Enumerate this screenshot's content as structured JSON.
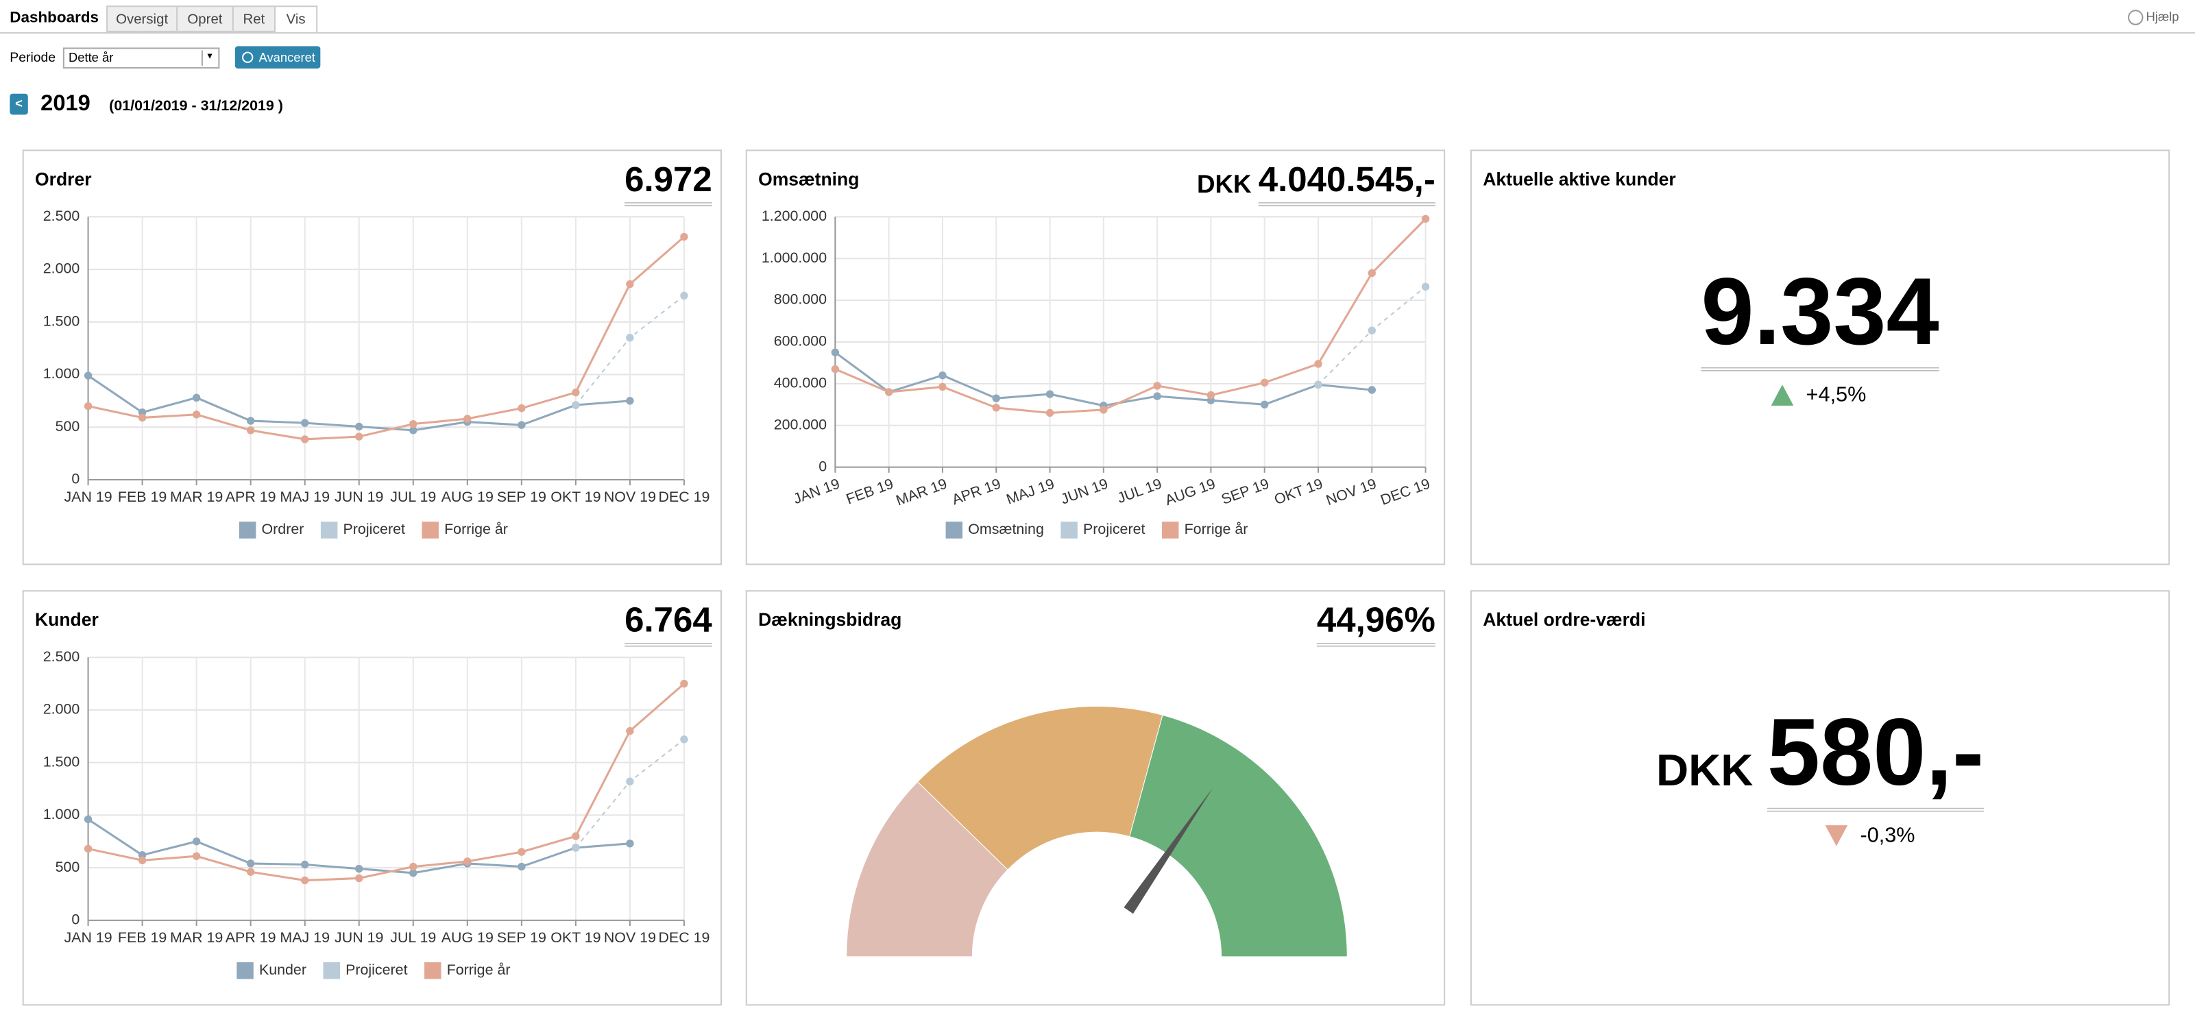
{
  "header": {
    "title": "Dashboards",
    "tabs": [
      "Oversigt",
      "Opret",
      "Ret",
      "Vis"
    ],
    "help": "Hjælp"
  },
  "filter": {
    "label": "Periode",
    "select": "Dette år",
    "button": "Avanceret"
  },
  "period": {
    "back": "<",
    "year": "2019",
    "range": "(01/01/2019 - 31/12/2019 )"
  },
  "chart_data": [
    {
      "type": "line",
      "title": "Ordrer",
      "total": "6.972",
      "categories": [
        "JAN 19",
        "FEB 19",
        "MAR 19",
        "APR 19",
        "MAJ 19",
        "JUN 19",
        "JUL 19",
        "AUG 19",
        "SEP 19",
        "OKT 19",
        "NOV 19",
        "DEC 19"
      ],
      "ylim": [
        0,
        2500
      ],
      "yticks": [
        0,
        500,
        {
          "value": 1000,
          "label": "1.000"
        },
        {
          "value": 1500,
          "label": "1.500"
        },
        {
          "value": 2000,
          "label": "2.000"
        },
        {
          "value": 2500,
          "label": "2.500"
        }
      ],
      "grid": true,
      "series": [
        {
          "name": "Ordrer",
          "color": "#8fa8bc",
          "values": [
            990,
            640,
            780,
            560,
            540,
            505,
            470,
            550,
            520,
            710,
            750,
            null
          ]
        },
        {
          "name": "Projiceret",
          "color": "#b9cbd8",
          "dashed": true,
          "values": [
            null,
            null,
            null,
            null,
            null,
            null,
            null,
            null,
            null,
            710,
            1350,
            1750
          ]
        },
        {
          "name": "Forrige år",
          "color": "#e2a793",
          "values": [
            700,
            590,
            620,
            470,
            385,
            410,
            530,
            580,
            680,
            830,
            1860,
            2310
          ]
        }
      ]
    },
    {
      "type": "line",
      "title": "Omsætning",
      "total_prefix": "DKK",
      "total": "4.040.545,-",
      "categories": [
        "JAN 19",
        "FEB 19",
        "MAR 19",
        "APR 19",
        "MAJ 19",
        "JUN 19",
        "JUL 19",
        "AUG 19",
        "SEP 19",
        "OKT 19",
        "NOV 19",
        "DEC 19"
      ],
      "ylim": [
        0,
        1200000
      ],
      "yticks": [
        0,
        {
          "value": 200000,
          "label": "200.000"
        },
        {
          "value": 400000,
          "label": "400.000"
        },
        {
          "value": 600000,
          "label": "600.000"
        },
        {
          "value": 800000,
          "label": "800.000"
        },
        {
          "value": 1000000,
          "label": "1.000.000"
        },
        {
          "value": 1200000,
          "label": "1.200.000"
        }
      ],
      "grid": true,
      "series": [
        {
          "name": "Omsætning",
          "color": "#8fa8bc",
          "values": [
            550000,
            360000,
            440000,
            330000,
            350000,
            295000,
            340000,
            320000,
            300000,
            395000,
            370000,
            null
          ]
        },
        {
          "name": "Projiceret",
          "color": "#b9cbd8",
          "dashed": true,
          "values": [
            null,
            null,
            null,
            null,
            null,
            null,
            null,
            null,
            null,
            395000,
            655000,
            865000
          ]
        },
        {
          "name": "Forrige år",
          "color": "#e2a793",
          "values": [
            470000,
            360000,
            385000,
            285000,
            260000,
            275000,
            390000,
            345000,
            405000,
            495000,
            930000,
            1190000
          ]
        }
      ]
    },
    {
      "type": "line",
      "title": "Kunder",
      "total": "6.764",
      "categories": [
        "JAN 19",
        "FEB 19",
        "MAR 19",
        "APR 19",
        "MAJ 19",
        "JUN 19",
        "JUL 19",
        "AUG 19",
        "SEP 19",
        "OKT 19",
        "NOV 19",
        "DEC 19"
      ],
      "ylim": [
        0,
        2500
      ],
      "yticks": [
        0,
        500,
        {
          "value": 1000,
          "label": "1.000"
        },
        {
          "value": 1500,
          "label": "1.500"
        },
        {
          "value": 2000,
          "label": "2.000"
        },
        {
          "value": 2500,
          "label": "2.500"
        }
      ],
      "grid": true,
      "series": [
        {
          "name": "Kunder",
          "color": "#8fa8bc",
          "values": [
            960,
            620,
            750,
            540,
            530,
            490,
            450,
            540,
            510,
            690,
            730,
            null
          ]
        },
        {
          "name": "Projiceret",
          "color": "#b9cbd8",
          "dashed": true,
          "values": [
            null,
            null,
            null,
            null,
            null,
            null,
            null,
            null,
            null,
            690,
            1320,
            1720
          ]
        },
        {
          "name": "Forrige år",
          "color": "#e2a793",
          "values": [
            680,
            570,
            610,
            460,
            380,
            400,
            510,
            560,
            650,
            800,
            1800,
            2250
          ]
        }
      ]
    },
    {
      "type": "gauge",
      "title": "Dækningsbidrag",
      "value": 44.96,
      "value_label": "44,96%",
      "ylim": [
        0,
        65
      ],
      "bands": [
        {
          "from": 0,
          "to": 16,
          "color": "#dfbdb3"
        },
        {
          "from": 16,
          "to": 38,
          "color": "#deae73"
        },
        {
          "from": 38,
          "to": 65,
          "color": "#6ab07a"
        }
      ]
    }
  ],
  "kpis": [
    {
      "title": "Aktuelle aktive kunder",
      "value": "9.334",
      "change": "+4,5%",
      "direction": "up"
    },
    {
      "title": "Aktuel ordre-værdi",
      "prefix": "DKK",
      "value": "580,-",
      "change": "-0,3%",
      "direction": "down"
    }
  ]
}
